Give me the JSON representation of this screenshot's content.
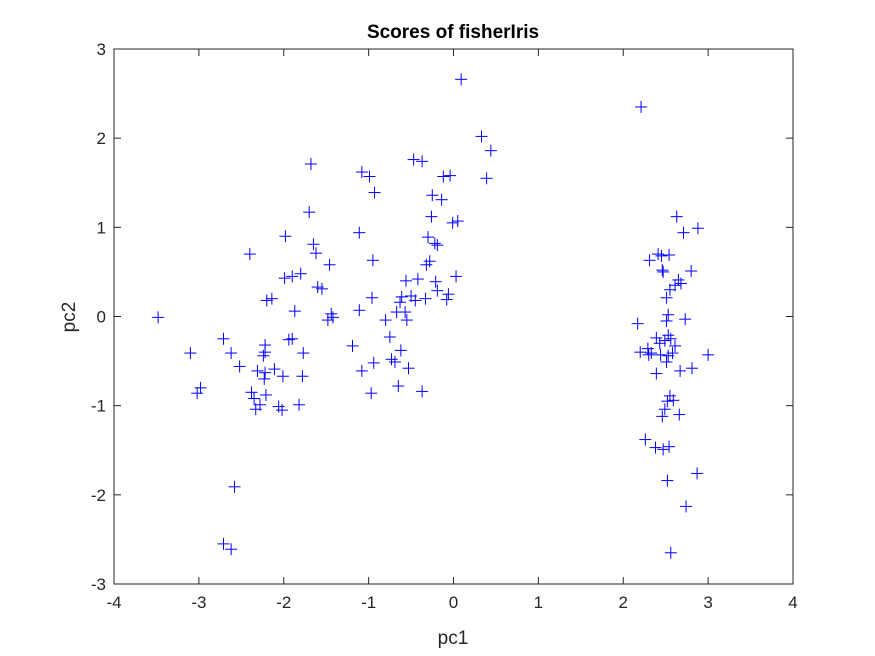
{
  "chart_data": {
    "type": "scatter",
    "title": "Scores of fisherIris",
    "xlabel": "pc1",
    "ylabel": "pc2",
    "xlim": [
      -4,
      4
    ],
    "ylim": [
      -3,
      3
    ],
    "xticks": [
      -4,
      -3,
      -2,
      -1,
      0,
      1,
      2,
      3,
      4
    ],
    "yticks": [
      -3,
      -2,
      -1,
      0,
      1,
      2,
      3
    ],
    "grid": false,
    "marker": "+",
    "color": "#0000ff",
    "series": [
      {
        "points": [
          [
            -3.48,
            -0.01
          ],
          [
            -3.1,
            -0.41
          ],
          [
            -3.02,
            -0.86
          ],
          [
            -2.98,
            -0.8
          ],
          [
            -2.71,
            -0.25
          ],
          [
            -2.71,
            -2.55
          ],
          [
            -2.62,
            -2.61
          ],
          [
            -2.58,
            -1.91
          ],
          [
            -2.62,
            -0.41
          ],
          [
            -2.52,
            -0.56
          ],
          [
            -2.4,
            0.7
          ],
          [
            -2.38,
            -0.85
          ],
          [
            -2.35,
            -0.92
          ],
          [
            -2.33,
            -1.04
          ],
          [
            -2.31,
            -0.61
          ],
          [
            -2.28,
            -0.99
          ],
          [
            -2.24,
            -0.44
          ],
          [
            -2.23,
            -0.7
          ],
          [
            -2.22,
            -0.63
          ],
          [
            -2.22,
            -0.4
          ],
          [
            -2.22,
            -0.32
          ],
          [
            -2.21,
            -0.88
          ],
          [
            -2.2,
            0.18
          ],
          [
            -2.14,
            0.2
          ],
          [
            -2.11,
            -0.59
          ],
          [
            -2.06,
            -1.01
          ],
          [
            -2.02,
            -1.05
          ],
          [
            -2.01,
            -0.67
          ],
          [
            -1.99,
            0.43
          ],
          [
            -1.98,
            0.9
          ],
          [
            -1.94,
            -0.26
          ],
          [
            -1.9,
            -0.25
          ],
          [
            -1.9,
            0.45
          ],
          [
            -1.87,
            0.06
          ],
          [
            -1.82,
            -0.99
          ],
          [
            -1.8,
            0.48
          ],
          [
            -1.78,
            -0.67
          ],
          [
            -1.77,
            -0.41
          ],
          [
            -1.7,
            1.17
          ],
          [
            -1.68,
            1.71
          ],
          [
            -1.65,
            0.81
          ],
          [
            -1.62,
            0.71
          ],
          [
            -1.6,
            0.33
          ],
          [
            -1.55,
            0.31
          ],
          [
            -1.48,
            -0.04
          ],
          [
            -1.46,
            0.58
          ],
          [
            -1.44,
            0.03
          ],
          [
            -1.42,
            -0.01
          ],
          [
            -1.19,
            -0.33
          ],
          [
            -1.11,
            0.94
          ],
          [
            -1.11,
            0.07
          ],
          [
            -1.08,
            1.62
          ],
          [
            -1.08,
            -0.61
          ],
          [
            -0.99,
            1.57
          ],
          [
            -0.97,
            -0.86
          ],
          [
            -0.96,
            0.21
          ],
          [
            -0.95,
            0.63
          ],
          [
            -0.94,
            -0.52
          ],
          [
            -0.93,
            1.39
          ],
          [
            -0.8,
            -0.04
          ],
          [
            -0.75,
            -0.23
          ],
          [
            -0.73,
            -0.48
          ],
          [
            -0.69,
            -0.51
          ],
          [
            -0.67,
            0.05
          ],
          [
            -0.65,
            -0.78
          ],
          [
            -0.63,
            0.16
          ],
          [
            -0.62,
            -0.38
          ],
          [
            -0.61,
            0.22
          ],
          [
            -0.57,
            0.05
          ],
          [
            -0.56,
            0.4
          ],
          [
            -0.55,
            -0.04
          ],
          [
            -0.53,
            -0.58
          ],
          [
            -0.5,
            0.23
          ],
          [
            -0.47,
            1.76
          ],
          [
            -0.45,
            0.18
          ],
          [
            -0.42,
            0.42
          ],
          [
            -0.37,
            1.74
          ],
          [
            -0.37,
            -0.84
          ],
          [
            -0.33,
            0.2
          ],
          [
            -0.32,
            0.58
          ],
          [
            -0.3,
            0.89
          ],
          [
            -0.28,
            0.62
          ],
          [
            -0.26,
            1.12
          ],
          [
            -0.25,
            1.36
          ],
          [
            -0.22,
            0.82
          ],
          [
            -0.21,
            0.39
          ],
          [
            -0.19,
            0.29
          ],
          [
            -0.19,
            0.8
          ],
          [
            -0.14,
            1.31
          ],
          [
            -0.12,
            1.57
          ],
          [
            -0.08,
            0.19
          ],
          [
            -0.06,
            0.25
          ],
          [
            -0.04,
            1.58
          ],
          [
            -0.01,
            1.05
          ],
          [
            0.03,
            0.45
          ],
          [
            0.05,
            1.07
          ],
          [
            0.09,
            2.66
          ],
          [
            0.33,
            2.02
          ],
          [
            0.39,
            1.55
          ],
          [
            0.44,
            1.86
          ],
          [
            2.17,
            -0.08
          ],
          [
            2.2,
            -0.4
          ],
          [
            2.21,
            2.35
          ],
          [
            2.26,
            -1.38
          ],
          [
            2.29,
            -0.36
          ],
          [
            2.3,
            -0.43
          ],
          [
            2.31,
            0.63
          ],
          [
            2.33,
            -0.41
          ],
          [
            2.38,
            -1.47
          ],
          [
            2.39,
            -0.64
          ],
          [
            2.39,
            -0.24
          ],
          [
            2.41,
            0.7
          ],
          [
            2.43,
            -0.3
          ],
          [
            2.44,
            -0.43
          ],
          [
            2.45,
            0.68
          ],
          [
            2.46,
            -1.12
          ],
          [
            2.46,
            0.52
          ],
          [
            2.47,
            -1.49
          ],
          [
            2.47,
            0.5
          ],
          [
            2.49,
            -1.04
          ],
          [
            2.49,
            -0.27
          ],
          [
            2.51,
            -0.51
          ],
          [
            2.51,
            -0.05
          ],
          [
            2.51,
            0.21
          ],
          [
            2.52,
            -1.84
          ],
          [
            2.52,
            -0.95
          ],
          [
            2.53,
            -0.21
          ],
          [
            2.53,
            -0.44
          ],
          [
            2.53,
            0.02
          ],
          [
            2.54,
            -1.46
          ],
          [
            2.54,
            0.69
          ],
          [
            2.55,
            -0.89
          ],
          [
            2.55,
            0.3
          ],
          [
            2.56,
            -0.25
          ],
          [
            2.56,
            -2.65
          ],
          [
            2.58,
            -0.41
          ],
          [
            2.59,
            -0.94
          ],
          [
            2.61,
            0.35
          ],
          [
            2.61,
            -0.33
          ],
          [
            2.63,
            1.12
          ],
          [
            2.65,
            0.41
          ],
          [
            2.66,
            -1.1
          ],
          [
            2.67,
            -0.61
          ],
          [
            2.68,
            0.37
          ],
          [
            2.71,
            0.94
          ],
          [
            2.73,
            -0.03
          ],
          [
            2.74,
            -2.13
          ],
          [
            2.8,
            0.51
          ],
          [
            2.81,
            -0.58
          ],
          [
            2.87,
            -1.76
          ],
          [
            2.88,
            0.99
          ],
          [
            3.0,
            -0.43
          ]
        ]
      }
    ]
  }
}
